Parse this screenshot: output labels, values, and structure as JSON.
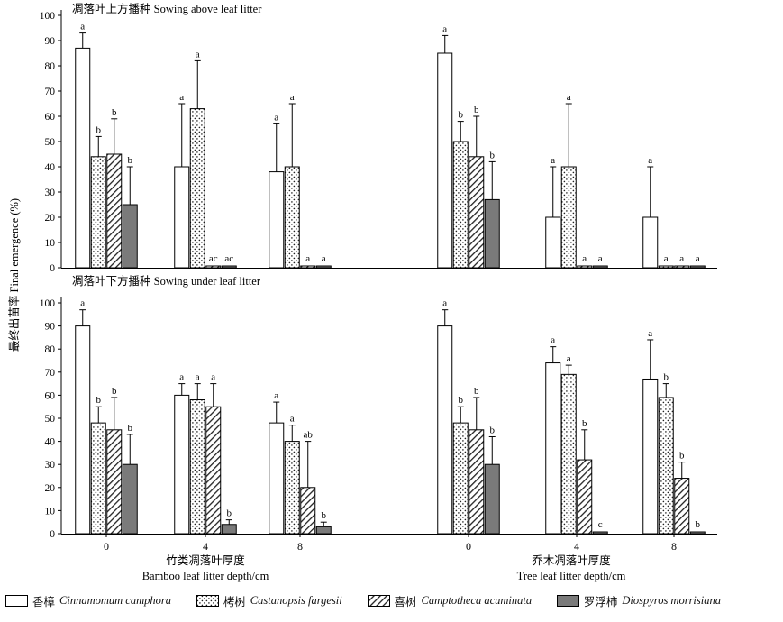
{
  "legend": {
    "items": [
      {
        "zh": "香樟",
        "latin": "Cinnamomum camphora"
      },
      {
        "zh": "栲树",
        "latin": "Castanopsis fargesii"
      },
      {
        "zh": "喜树",
        "latin": "Camptotheca acuminata"
      },
      {
        "zh": "罗浮柿",
        "latin": "Diospyros morrisiana"
      }
    ]
  },
  "chart_data": {
    "type": "bar",
    "ylabel": "最终出苗率 Final emergence (%)",
    "ylim": [
      0,
      100
    ],
    "ytick_step": 10,
    "grid": false,
    "legend_position": "bottom",
    "error_bars": "upper",
    "series_names": [
      "Cinnamomum camphora",
      "Castanopsis fargesii",
      "Camptotheca acuminata",
      "Diospyros morrisiana"
    ],
    "series_patterns": [
      "open-white",
      "dots",
      "diagonal-hatch",
      "solid-gray"
    ],
    "x_groups": {
      "bamboo": {
        "title_zh": "竹类凋落叶厚度",
        "title_en": "Bamboo leaf litter depth/cm",
        "depths": [
          "0",
          "4",
          "8"
        ]
      },
      "tree": {
        "title_zh": "乔木凋落叶厚度",
        "title_en": "Tree leaf litter depth/cm",
        "depths": [
          "0",
          "4",
          "8"
        ]
      }
    },
    "panels": [
      {
        "title": "凋落叶上方播种 Sowing above leaf litter",
        "groups": [
          {
            "litter": "bamboo",
            "depth": "0",
            "bars": [
              {
                "v": 87,
                "e": 6,
                "l": "a"
              },
              {
                "v": 44,
                "e": 8,
                "l": "b"
              },
              {
                "v": 45,
                "e": 14,
                "l": "b"
              },
              {
                "v": 25,
                "e": 15,
                "l": "b"
              }
            ]
          },
          {
            "litter": "bamboo",
            "depth": "4",
            "bars": [
              {
                "v": 40,
                "e": 25,
                "l": "a"
              },
              {
                "v": 63,
                "e": 19,
                "l": "a"
              },
              {
                "v": 0,
                "e": 0,
                "l": "ac"
              },
              {
                "v": 0,
                "e": 0,
                "l": "ac"
              }
            ]
          },
          {
            "litter": "bamboo",
            "depth": "8",
            "bars": [
              {
                "v": 38,
                "e": 19,
                "l": "a"
              },
              {
                "v": 40,
                "e": 25,
                "l": "a"
              },
              {
                "v": 0,
                "e": 0,
                "l": "a"
              },
              {
                "v": 0,
                "e": 0,
                "l": "a"
              }
            ]
          },
          {
            "litter": "tree",
            "depth": "0",
            "bars": [
              {
                "v": 85,
                "e": 7,
                "l": "a"
              },
              {
                "v": 50,
                "e": 8,
                "l": "b"
              },
              {
                "v": 44,
                "e": 16,
                "l": "b"
              },
              {
                "v": 27,
                "e": 15,
                "l": "b"
              }
            ]
          },
          {
            "litter": "tree",
            "depth": "4",
            "bars": [
              {
                "v": 20,
                "e": 20,
                "l": "a"
              },
              {
                "v": 40,
                "e": 25,
                "l": "a"
              },
              {
                "v": 0,
                "e": 0,
                "l": "a"
              },
              {
                "v": 0,
                "e": 0,
                "l": "a"
              }
            ]
          },
          {
            "litter": "tree",
            "depth": "8",
            "bars": [
              {
                "v": 20,
                "e": 20,
                "l": "a"
              },
              {
                "v": 0,
                "e": 0,
                "l": "a"
              },
              {
                "v": 0,
                "e": 0,
                "l": "a"
              },
              {
                "v": 0,
                "e": 0,
                "l": "a"
              }
            ]
          }
        ]
      },
      {
        "title": "凋落叶下方播种 Sowing under leaf litter",
        "groups": [
          {
            "litter": "bamboo",
            "depth": "0",
            "bars": [
              {
                "v": 90,
                "e": 7,
                "l": "a"
              },
              {
                "v": 48,
                "e": 7,
                "l": "b"
              },
              {
                "v": 45,
                "e": 14,
                "l": "b"
              },
              {
                "v": 30,
                "e": 13,
                "l": "b"
              }
            ]
          },
          {
            "litter": "bamboo",
            "depth": "4",
            "bars": [
              {
                "v": 60,
                "e": 5,
                "l": "a"
              },
              {
                "v": 58,
                "e": 7,
                "l": "a"
              },
              {
                "v": 55,
                "e": 10,
                "l": "a"
              },
              {
                "v": 4,
                "e": 2,
                "l": "b"
              }
            ]
          },
          {
            "litter": "bamboo",
            "depth": "8",
            "bars": [
              {
                "v": 48,
                "e": 9,
                "l": "a"
              },
              {
                "v": 40,
                "e": 7,
                "l": "a"
              },
              {
                "v": 20,
                "e": 20,
                "l": "ab"
              },
              {
                "v": 3,
                "e": 2,
                "l": "b"
              }
            ]
          },
          {
            "litter": "tree",
            "depth": "0",
            "bars": [
              {
                "v": 90,
                "e": 7,
                "l": "a"
              },
              {
                "v": 48,
                "e": 7,
                "l": "b"
              },
              {
                "v": 45,
                "e": 14,
                "l": "b"
              },
              {
                "v": 30,
                "e": 12,
                "l": "b"
              }
            ]
          },
          {
            "litter": "tree",
            "depth": "4",
            "bars": [
              {
                "v": 74,
                "e": 7,
                "l": "a"
              },
              {
                "v": 69,
                "e": 4,
                "l": "a"
              },
              {
                "v": 32,
                "e": 13,
                "l": "b"
              },
              {
                "v": 0,
                "e": 0,
                "l": "c"
              }
            ]
          },
          {
            "litter": "tree",
            "depth": "8",
            "bars": [
              {
                "v": 67,
                "e": 17,
                "l": "a"
              },
              {
                "v": 59,
                "e": 6,
                "l": "b"
              },
              {
                "v": 24,
                "e": 7,
                "l": "b"
              },
              {
                "v": 0,
                "e": 0,
                "l": "b"
              }
            ]
          }
        ]
      }
    ]
  }
}
